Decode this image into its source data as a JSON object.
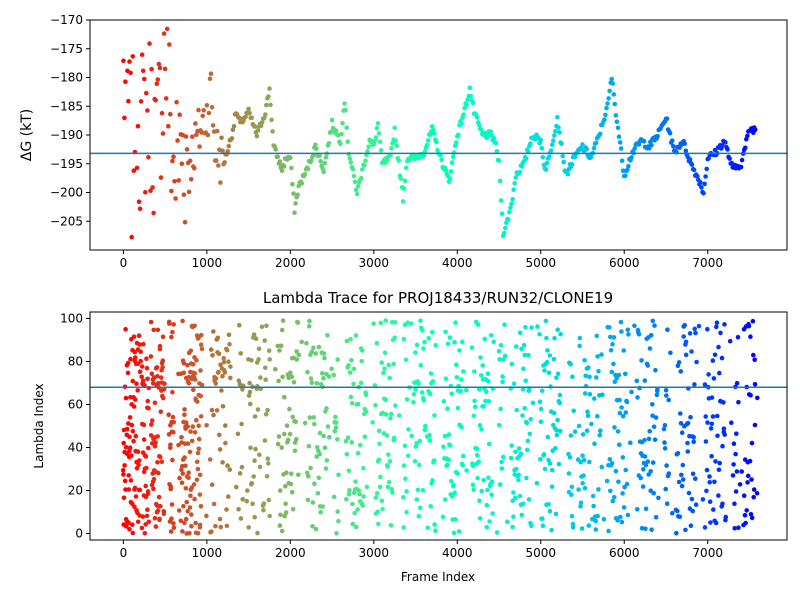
{
  "chart_data": [
    {
      "type": "scatter",
      "title": "",
      "xlabel": "",
      "ylabel": "ΔG (kT)",
      "xlim": [
        -400,
        7950
      ],
      "ylim": [
        -210,
        -170
      ],
      "xticks": [
        0,
        1000,
        2000,
        3000,
        4000,
        5000,
        6000,
        7000
      ],
      "yticks": [
        -205,
        -200,
        -195,
        -190,
        -185,
        -180,
        -175,
        -170
      ],
      "reference_line": {
        "y": -193.2,
        "color": "#1f77b4"
      },
      "colormap": "rainbow (red → violet with frame index)",
      "marker": "dot",
      "series": [
        {
          "x": [
            0,
            60,
            100,
            150,
            200,
            300,
            400,
            500,
            600,
            700,
            800,
            900,
            1000,
            1050,
            1100,
            1200,
            1300,
            1350,
            1400,
            1500,
            1600,
            1700,
            1750,
            1800,
            1900,
            1950,
            2000,
            2050,
            2100,
            2200,
            2300,
            2400,
            2500,
            2600,
            2650,
            2700,
            2800,
            2900,
            2950,
            3000,
            3050,
            3100,
            3200,
            3250,
            3300,
            3350,
            3400,
            3500,
            3600,
            3700,
            3800,
            3900,
            4000,
            4100,
            4150,
            4200,
            4300,
            4400,
            4450,
            4500,
            4550,
            4600,
            4650,
            4700,
            4800,
            4900,
            5000,
            5050,
            5100,
            5200,
            5300,
            5400,
            5500,
            5600,
            5700,
            5800,
            5850,
            5900,
            6000,
            6050,
            6100,
            6200,
            6300,
            6400,
            6500,
            6600,
            6700,
            6800,
            6900,
            6950,
            7000,
            7100,
            7200,
            7300,
            7400,
            7500,
            7580
          ],
          "y": [
            -180,
            -185,
            -195,
            -180,
            -190,
            -185,
            -192,
            -175,
            -196,
            -192,
            -194,
            -190,
            -186,
            -182,
            -192,
            -195,
            -190,
            -186,
            -188,
            -186,
            -190,
            -186,
            -182,
            -192,
            -196,
            -194,
            -194,
            -203,
            -199,
            -196,
            -192,
            -196,
            -188,
            -191,
            -184,
            -193,
            -200,
            -194,
            -191,
            -192,
            -188,
            -195,
            -194,
            -189,
            -195,
            -201,
            -194,
            -194,
            -193,
            -189,
            -194,
            -198,
            -190,
            -185,
            -182,
            -186,
            -190,
            -190,
            -191,
            -195,
            -207,
            -205,
            -202,
            -197,
            -195,
            -190,
            -191,
            -196,
            -194,
            -187,
            -197,
            -194,
            -192,
            -194,
            -190,
            -185,
            -180,
            -186,
            -197,
            -195,
            -193,
            -191,
            -192,
            -190,
            -187,
            -193,
            -191,
            -195,
            -198,
            -200,
            -194,
            -193,
            -191,
            -196,
            -195,
            -189,
            -189
          ]
        }
      ]
    },
    {
      "type": "scatter",
      "title": "Lambda Trace for PROJ18433/RUN32/CLONE19",
      "xlabel": "Frame Index",
      "ylabel": "Lambda Index",
      "xlim": [
        -400,
        7950
      ],
      "ylim": [
        -3,
        103
      ],
      "xticks": [
        0,
        1000,
        2000,
        3000,
        4000,
        5000,
        6000,
        7000
      ],
      "yticks": [
        0,
        20,
        40,
        60,
        80,
        100
      ],
      "reference_line": {
        "y": 68,
        "color": "#1f77b4"
      },
      "colormap": "rainbow (red → violet with frame index)",
      "marker": "dot",
      "x_range": [
        0,
        7600
      ],
      "y_range": [
        0,
        99
      ]
    }
  ]
}
